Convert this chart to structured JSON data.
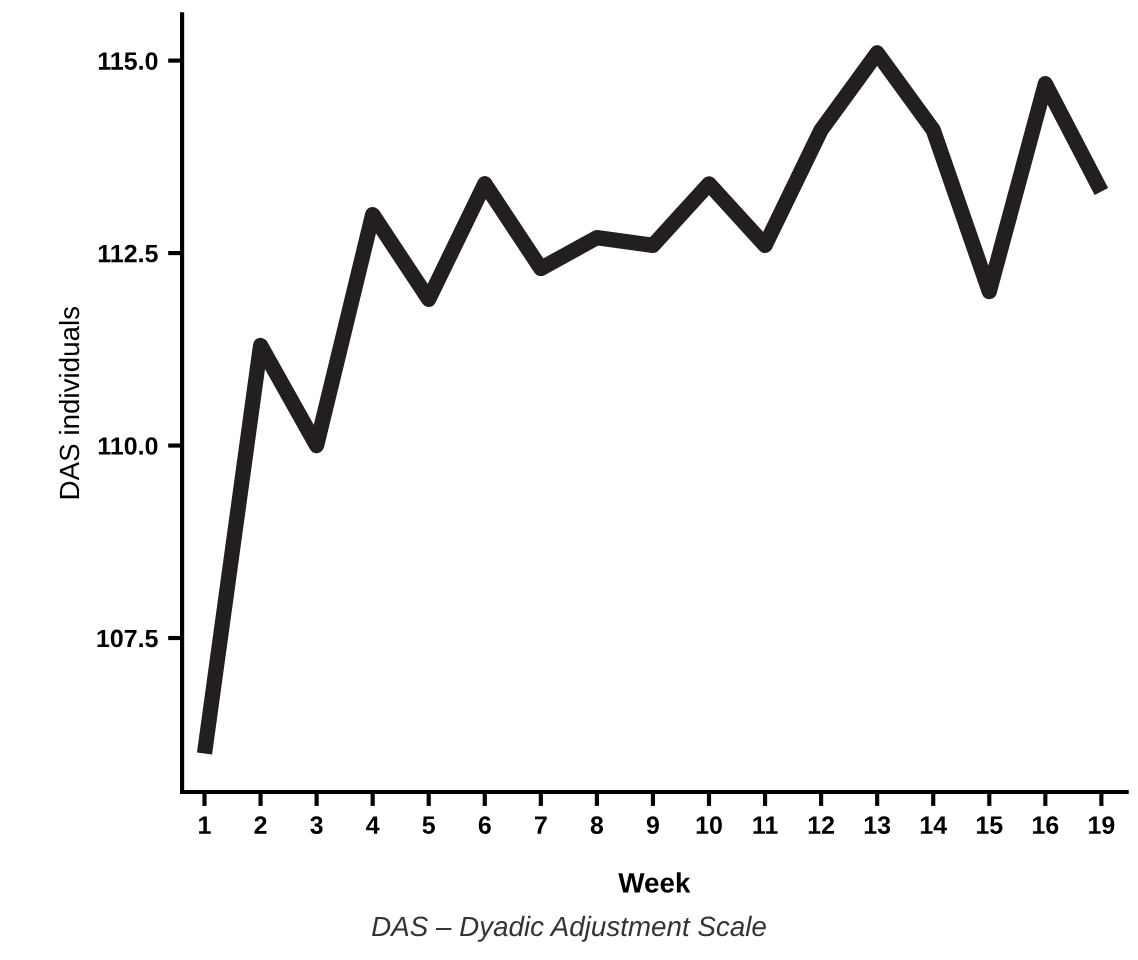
{
  "chart_data": {
    "type": "line",
    "xlabel": "Week",
    "ylabel": "DAS individuals",
    "categories": [
      "1",
      "2",
      "3",
      "4",
      "5",
      "6",
      "7",
      "8",
      "9",
      "10",
      "11",
      "12",
      "13",
      "14",
      "15",
      "16",
      "19"
    ],
    "series": [
      {
        "color": "#231f20",
        "values": [
          106.0,
          111.3,
          110.0,
          113.0,
          111.9,
          113.4,
          112.3,
          112.7,
          112.6,
          113.4,
          112.6,
          114.1,
          115.1,
          114.1,
          112.0,
          114.7,
          113.3
        ]
      }
    ],
    "ylim": [
      105.5,
      115.6
    ],
    "yticks": [
      {
        "value": 107.5,
        "label": "107.5"
      },
      {
        "value": 110,
        "label": "110.0"
      },
      {
        "value": 112.5,
        "label": "112.5"
      },
      {
        "value": 115,
        "label": "115.0"
      }
    ],
    "marker": "none",
    "line_style": "solid",
    "annotations": [
      "DAS – Dyadic Adjustment Scale"
    ]
  }
}
